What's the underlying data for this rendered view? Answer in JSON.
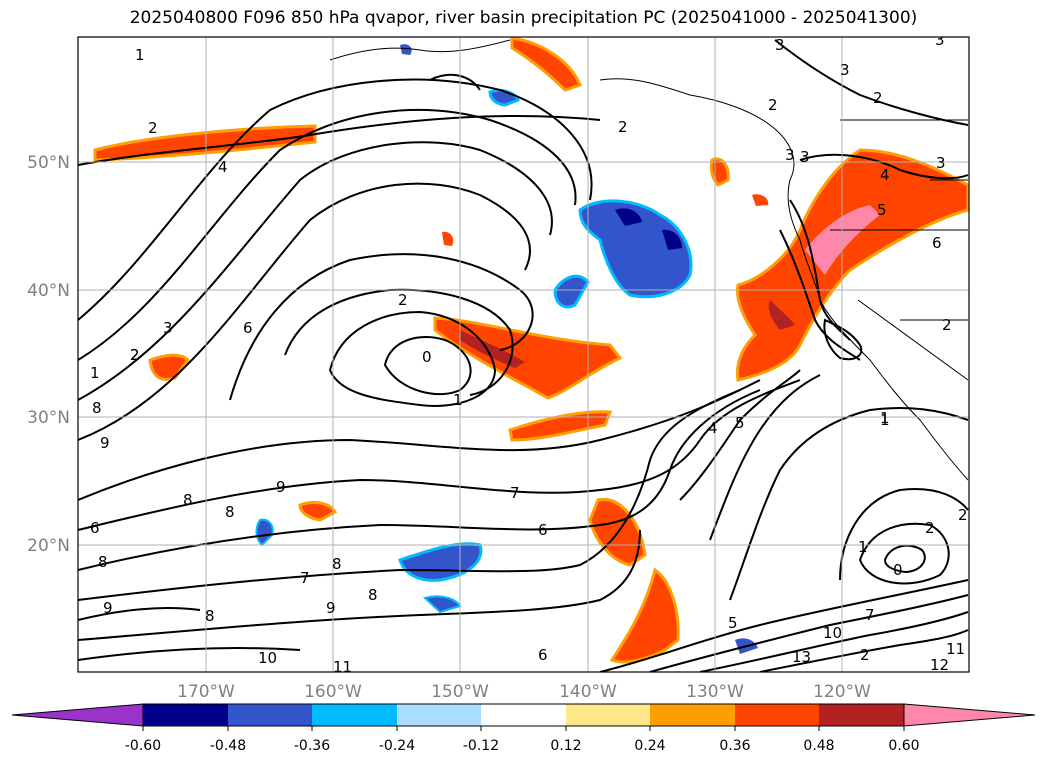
{
  "title": "2025040800 F096 850 hPa qvapor, river basin precipitation PC (2025041000 - 2025041300)",
  "map": {
    "lon_labels": [
      "170°W",
      "160°W",
      "150°W",
      "140°W",
      "130°W",
      "120°W"
    ],
    "lat_labels": [
      "50°N",
      "40°N",
      "30°N",
      "20°N"
    ],
    "contour_labels": [
      "1",
      "2",
      "4",
      "3",
      "2",
      "3",
      "3",
      "2",
      "2",
      "6",
      "2",
      "0",
      "1",
      "3",
      "2",
      "1",
      "8",
      "9",
      "9",
      "8",
      "8",
      "7",
      "6",
      "8",
      "8",
      "9",
      "7",
      "8",
      "9",
      "6",
      "10",
      "11",
      "8",
      "6",
      "5",
      "4",
      "5",
      "1",
      "2",
      "1",
      "0",
      "2",
      "7",
      "10",
      "13",
      "2",
      "12",
      "11",
      "3",
      "3",
      "2",
      "3",
      "4",
      "5",
      "6",
      "2",
      "1"
    ],
    "colors": {
      "contour": "#000000",
      "grid": "#b0b0b0",
      "coast": "#000000"
    }
  },
  "colorbar": {
    "ticks": [
      "-0.60",
      "-0.48",
      "-0.36",
      "-0.24",
      "-0.12",
      "0.12",
      "0.24",
      "0.36",
      "0.48",
      "0.60"
    ],
    "colors": [
      "#9933cc",
      "#00008b",
      "#3355cc",
      "#00bbff",
      "#aaddff",
      "#ffffff",
      "#ffe88a",
      "#ff9e00",
      "#ff4400",
      "#b22222",
      "#ff88aa"
    ]
  }
}
